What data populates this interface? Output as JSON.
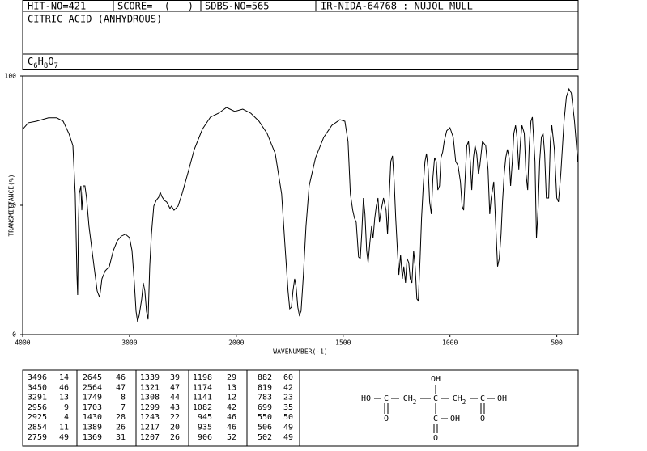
{
  "header": {
    "hit_no": "HIT-NO=421",
    "score": "SCORE=  (   )",
    "sdbs_no": "SDBS-NO=565",
    "ir_code": "IR-NIDA-64768 : NUJOL MULL",
    "name": "CITRIC ACID (ANHYDROUS)",
    "formula": "C6H8O7"
  },
  "chart_data": {
    "type": "line",
    "x_label": "WAVENUMBER(-1)",
    "y_label": "TRANSMITTANCE(%)",
    "color": "#000000",
    "xlim": [
      4000,
      400
    ],
    "xticks": [
      4000,
      3000,
      2000,
      1500,
      1000,
      500
    ],
    "x_scale_break": 2000,
    "ylim": [
      0,
      100
    ],
    "yticks": [
      0,
      50,
      100
    ],
    "x": [
      4000,
      3947,
      3871,
      3758,
      3682,
      3621,
      3568,
      3530,
      3508,
      3492,
      3485,
      3477,
      3470,
      3455,
      3447,
      3432,
      3417,
      3402,
      3379,
      3341,
      3303,
      3280,
      3258,
      3227,
      3189,
      3152,
      3114,
      3076,
      3038,
      3000,
      2977,
      2955,
      2939,
      2924,
      2909,
      2886,
      2871,
      2856,
      2841,
      2826,
      2811,
      2795,
      2773,
      2750,
      2727,
      2712,
      2697,
      2674,
      2652,
      2621,
      2606,
      2583,
      2545,
      2508,
      2455,
      2394,
      2318,
      2242,
      2167,
      2091,
      2015,
      1970,
      1932,
      1894,
      1856,
      1818,
      1788,
      1773,
      1758,
      1750,
      1742,
      1735,
      1727,
      1720,
      1712,
      1705,
      1697,
      1686,
      1674,
      1659,
      1629,
      1591,
      1553,
      1515,
      1492,
      1477,
      1466,
      1455,
      1447,
      1439,
      1428,
      1420,
      1413,
      1405,
      1398,
      1390,
      1383,
      1375,
      1367,
      1360,
      1352,
      1345,
      1337,
      1330,
      1322,
      1311,
      1299,
      1292,
      1284,
      1277,
      1269,
      1261,
      1254,
      1246,
      1239,
      1231,
      1223,
      1216,
      1208,
      1201,
      1193,
      1186,
      1178,
      1170,
      1163,
      1155,
      1148,
      1140,
      1133,
      1125,
      1117,
      1110,
      1102,
      1095,
      1087,
      1080,
      1072,
      1064,
      1057,
      1049,
      1042,
      1034,
      1027,
      1015,
      1000,
      985,
      973,
      962,
      951,
      943,
      936,
      928,
      921,
      913,
      905,
      898,
      890,
      883,
      875,
      867,
      860,
      848,
      833,
      822,
      814,
      807,
      795,
      784,
      777,
      769,
      761,
      754,
      746,
      739,
      731,
      723,
      716,
      708,
      701,
      693,
      686,
      678,
      670,
      663,
      652,
      644,
      636,
      629,
      621,
      614,
      602,
      595,
      587,
      580,
      572,
      564,
      557,
      549,
      538,
      530,
      523,
      511,
      500,
      492,
      481,
      466,
      455,
      443,
      432,
      417,
      402
    ],
    "values": [
      79.4,
      81.9,
      82.5,
      83.8,
      83.8,
      82.5,
      77.8,
      73.1,
      54.4,
      23.1,
      15.3,
      45.0,
      54.4,
      57.5,
      48.1,
      57.5,
      57.5,
      52.8,
      41.9,
      29.4,
      16.9,
      14.4,
      21.6,
      24.7,
      26.3,
      32.5,
      36.3,
      38.1,
      38.8,
      37.5,
      32.5,
      20.0,
      9.1,
      5.0,
      7.5,
      13.8,
      20.0,
      16.9,
      9.1,
      5.9,
      26.3,
      38.8,
      49.7,
      51.9,
      53.1,
      55.0,
      53.4,
      51.9,
      51.3,
      48.8,
      49.7,
      48.1,
      49.7,
      54.4,
      62.2,
      71.6,
      79.4,
      84.1,
      85.6,
      87.8,
      86.3,
      87.2,
      85.6,
      82.5,
      77.8,
      70.0,
      54.4,
      35.6,
      16.9,
      10.0,
      10.6,
      16.9,
      21.6,
      18.4,
      10.6,
      7.5,
      9.1,
      23.1,
      41.9,
      57.5,
      68.4,
      76.3,
      80.9,
      83.1,
      82.5,
      74.7,
      54.4,
      48.1,
      45.0,
      43.4,
      30.0,
      29.4,
      38.8,
      52.8,
      46.6,
      32.5,
      27.8,
      35.6,
      41.9,
      37.2,
      45.0,
      49.7,
      52.8,
      43.4,
      48.1,
      52.8,
      48.1,
      38.8,
      54.4,
      66.9,
      69.1,
      59.1,
      45.0,
      32.5,
      23.1,
      30.9,
      21.6,
      26.3,
      20.0,
      29.4,
      27.8,
      21.6,
      20.0,
      32.5,
      26.3,
      13.8,
      13.1,
      29.4,
      45.0,
      57.5,
      66.9,
      70.0,
      63.8,
      51.3,
      46.6,
      60.6,
      68.4,
      66.9,
      55.9,
      57.5,
      68.4,
      70.6,
      74.7,
      78.8,
      80.0,
      76.3,
      66.9,
      65.3,
      59.1,
      49.7,
      48.1,
      62.2,
      73.1,
      74.7,
      66.9,
      55.9,
      68.4,
      73.1,
      70.0,
      62.2,
      65.3,
      74.7,
      73.1,
      63.8,
      46.6,
      52.8,
      59.1,
      38.8,
      26.3,
      29.4,
      38.8,
      51.3,
      62.2,
      68.4,
      71.6,
      68.4,
      57.5,
      66.9,
      77.8,
      80.9,
      76.3,
      63.8,
      74.7,
      80.9,
      77.8,
      62.2,
      55.9,
      73.1,
      82.5,
      84.1,
      66.9,
      37.2,
      49.7,
      66.9,
      76.3,
      77.8,
      70.0,
      52.8,
      52.8,
      74.7,
      80.9,
      71.6,
      52.8,
      51.3,
      62.2,
      82.5,
      91.9,
      95.0,
      93.4,
      82.5,
      66.9
    ]
  },
  "peak_table": {
    "columns": [
      [
        [
          3496,
          14
        ],
        [
          3450,
          46
        ],
        [
          3291,
          13
        ],
        [
          2956,
          9
        ],
        [
          2925,
          4
        ],
        [
          2854,
          11
        ],
        [
          2759,
          49
        ]
      ],
      [
        [
          2645,
          46
        ],
        [
          2564,
          47
        ],
        [
          1749,
          8
        ],
        [
          1703,
          7
        ],
        [
          1430,
          28
        ],
        [
          1389,
          26
        ],
        [
          1369,
          31
        ]
      ],
      [
        [
          1339,
          39
        ],
        [
          1321,
          47
        ],
        [
          1308,
          44
        ],
        [
          1299,
          43
        ],
        [
          1243,
          22
        ],
        [
          1217,
          20
        ],
        [
          1207,
          26
        ]
      ],
      [
        [
          1198,
          29
        ],
        [
          1174,
          13
        ],
        [
          1141,
          12
        ],
        [
          1082,
          42
        ],
        [
          945,
          46
        ],
        [
          935,
          46
        ],
        [
          906,
          52
        ]
      ],
      [
        [
          882,
          60
        ],
        [
          819,
          42
        ],
        [
          783,
          23
        ],
        [
          699,
          35
        ],
        [
          550,
          50
        ],
        [
          506,
          49
        ],
        [
          502,
          49
        ]
      ]
    ]
  },
  "structure": {
    "labels": [
      "OH",
      "HO",
      "C",
      "CH2",
      "C",
      "CH2",
      "C",
      "OH",
      "O",
      "C",
      "OH",
      "O",
      "O"
    ]
  }
}
